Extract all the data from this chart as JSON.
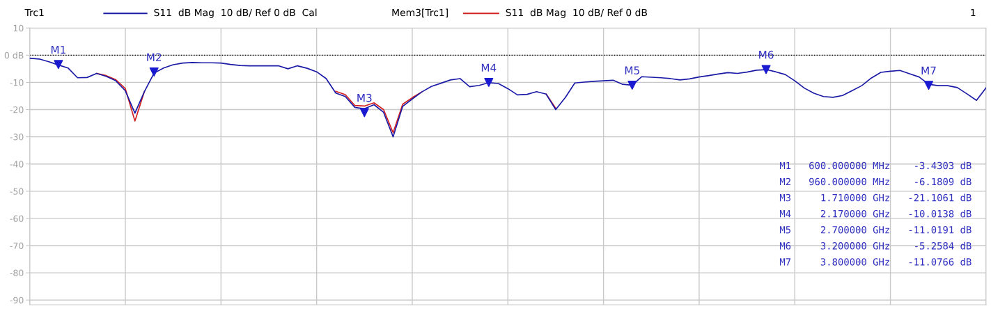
{
  "chart_data": {
    "type": "line",
    "categories": [
      null,
      null,
      null,
      null,
      null,
      null,
      null,
      null,
      null,
      null,
      null,
      null,
      null,
      null,
      null,
      null,
      null,
      null,
      null,
      null,
      null,
      null,
      null,
      null,
      null,
      null,
      null,
      null,
      null,
      null,
      null,
      null,
      null,
      null,
      null,
      null,
      null,
      null,
      null,
      null,
      null,
      null,
      null,
      null,
      null,
      null,
      null,
      null,
      null,
      null,
      null,
      null,
      null,
      null,
      null,
      null,
      null,
      null,
      null,
      null,
      null,
      null,
      null,
      null,
      null,
      null,
      null,
      null,
      null,
      null,
      null,
      null,
      null,
      null,
      null,
      null,
      null,
      null,
      null,
      null,
      null,
      null,
      null,
      null,
      null,
      null,
      null,
      null,
      null,
      null,
      null,
      null,
      null,
      null,
      null,
      null,
      null,
      null,
      null,
      null,
      null
    ],
    "ylim": [
      -91.75,
      10
    ],
    "yticks": [
      10,
      {
        "value": 0,
        "label": "0 dB"
      },
      -10,
      -20,
      -30,
      -40,
      -50,
      -60,
      -70,
      -80,
      -90
    ],
    "tick_labels": "y",
    "grid": true,
    "legend": "top",
    "line_style": "solid",
    "ref_lines": [
      {
        "axis": "y",
        "value": 0,
        "color": "#000000",
        "line_style": "dotted"
      }
    ],
    "series": [
      {
        "name": "S11  dB Mag  10 dB/ Ref 0 dB  Cal",
        "color": "#1a1aa6",
        "values": [
          -1.1,
          -1.4,
          -2.4,
          -3.6,
          -4.7,
          -8.3,
          -8.2,
          -6.7,
          -7.8,
          -9.4,
          -13.1,
          -21.3,
          -13.3,
          -6.6,
          -4.7,
          -3.5,
          -2.9,
          -2.7,
          -2.8,
          -2.8,
          -2.9,
          -3.4,
          -3.8,
          -3.9,
          -3.9,
          -3.9,
          -3.9,
          -5.0,
          -3.9,
          -4.8,
          -6.1,
          -8.6,
          -13.9,
          -15.2,
          -19.2,
          -19.7,
          -18.2,
          -21.0,
          -30.0,
          -18.8,
          -16.1,
          -13.5,
          -11.5,
          -10.3,
          -9.1,
          -8.6,
          -11.6,
          -11.1,
          -10.1,
          -10.4,
          -12.3,
          -14.6,
          -14.4,
          -13.4,
          -14.3,
          -20.0,
          -15.6,
          -10.2,
          -9.9,
          -9.6,
          -9.4,
          -9.2,
          -10.7,
          -11.0,
          -7.9,
          -8.1,
          -8.3,
          -8.6,
          -9.1,
          -8.7,
          -8.0,
          -7.5,
          -6.9,
          -6.4,
          -6.7,
          -6.2,
          -5.5,
          -5.3,
          -6.1,
          -7.1,
          -9.4,
          -12.1,
          -14.0,
          -15.2,
          -15.5,
          -14.8,
          -13.0,
          -11.2,
          -8.4,
          -6.3,
          -5.9,
          -5.6,
          -6.8,
          -8.0,
          -10.7,
          -11.2,
          -11.2,
          -11.9,
          -14.2,
          -16.6,
          -12.0
        ]
      },
      {
        "name": "S11  dB Mag  10 dB/ Ref 0 dB",
        "color": "#d42020",
        "values": [
          null,
          null,
          null,
          null,
          null,
          null,
          null,
          -6.7,
          -7.5,
          -9.0,
          -12.3,
          -24.2,
          -13.3,
          null,
          null,
          null,
          null,
          null,
          null,
          null,
          null,
          null,
          null,
          null,
          null,
          null,
          null,
          null,
          null,
          null,
          null,
          null,
          -13.3,
          -14.5,
          -18.5,
          -18.7,
          -17.5,
          -20.0,
          -28.5,
          -18.0,
          -15.6,
          -13.5,
          null,
          null,
          null,
          null,
          null,
          null,
          null,
          null,
          null,
          null,
          null,
          null,
          -14.3,
          -19.5,
          null,
          null,
          null,
          null,
          null,
          null,
          null,
          null,
          null,
          null,
          null,
          null,
          null,
          null,
          null,
          null,
          null,
          null,
          null,
          null,
          null,
          null,
          null,
          null,
          null,
          null,
          null,
          null,
          null,
          null,
          null,
          null,
          null,
          null,
          null,
          null,
          null,
          null,
          null,
          null,
          null,
          null,
          null,
          null,
          null
        ]
      },
      {
        "type": "scatter",
        "marker": "triangle",
        "color": "#1a1ad0",
        "values": [
          null,
          null,
          null,
          -3.4303,
          null,
          null,
          null,
          null,
          null,
          null,
          null,
          null,
          null,
          -6.1809,
          null,
          null,
          null,
          null,
          null,
          null,
          null,
          null,
          null,
          null,
          null,
          null,
          null,
          null,
          null,
          null,
          null,
          null,
          null,
          null,
          null,
          -21.1061,
          null,
          null,
          null,
          null,
          null,
          null,
          null,
          null,
          null,
          null,
          null,
          null,
          -10.0138,
          null,
          null,
          null,
          null,
          null,
          null,
          null,
          null,
          null,
          null,
          null,
          null,
          null,
          null,
          -11.0191,
          null,
          null,
          null,
          null,
          null,
          null,
          null,
          null,
          null,
          null,
          null,
          null,
          null,
          -5.2584,
          null,
          null,
          null,
          null,
          null,
          null,
          null,
          null,
          null,
          null,
          null,
          null,
          null,
          null,
          null,
          null,
          -11.0766,
          null,
          null,
          null,
          null,
          null,
          null
        ]
      }
    ],
    "annotations": [
      "Trc1",
      "Mem3[Trc1]",
      "1",
      "M1   600.000000 MHz    -3.4303 dB",
      "M2   960.000000 MHz    -6.1809 dB",
      "M3     1.710000 GHz   -21.1061 dB",
      "M4     2.170000 GHz   -10.0138 dB",
      "M5     2.700000 GHz   -11.0191 dB",
      "M6     3.200000 GHz    -5.2584 dB",
      "M7     3.800000 GHz   -11.0766 dB",
      {
        "text": "M1",
        "y": -3.4303
      },
      {
        "text": "M2",
        "y": -6.1809
      },
      {
        "text": "M3",
        "y": -21.1061
      },
      {
        "text": "M4",
        "y": -10.0138
      },
      {
        "text": "M5",
        "y": -11.0191
      },
      {
        "text": "M6",
        "y": -5.2584
      },
      {
        "text": "M7",
        "y": -11.0766
      }
    ]
  }
}
